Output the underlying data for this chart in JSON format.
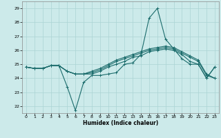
{
  "xlabel": "Humidex (Indice chaleur)",
  "xlim": [
    -0.5,
    23.5
  ],
  "ylim": [
    21.5,
    29.5
  ],
  "yticks": [
    22,
    23,
    24,
    25,
    26,
    27,
    28,
    29
  ],
  "xticks": [
    0,
    1,
    2,
    3,
    4,
    5,
    6,
    7,
    8,
    9,
    10,
    11,
    12,
    13,
    14,
    15,
    16,
    17,
    18,
    19,
    20,
    21,
    22,
    23
  ],
  "bg_color": "#cceaea",
  "grid_color": "#aad4d4",
  "line_color": "#1a6b6b",
  "lines": [
    [
      24.8,
      24.7,
      24.7,
      24.9,
      24.9,
      23.4,
      21.7,
      23.7,
      24.2,
      24.2,
      24.3,
      24.4,
      25.0,
      25.1,
      25.7,
      28.3,
      29.0,
      26.8,
      26.1,
      25.4,
      25.0,
      25.0,
      24.0,
      24.8
    ],
    [
      24.8,
      24.7,
      24.7,
      24.9,
      24.9,
      24.5,
      24.3,
      24.3,
      24.3,
      24.5,
      24.8,
      25.0,
      25.2,
      25.5,
      25.6,
      25.9,
      26.0,
      26.1,
      26.0,
      25.7,
      25.2,
      25.0,
      24.0,
      24.8
    ],
    [
      24.8,
      24.7,
      24.7,
      24.9,
      24.9,
      24.5,
      24.3,
      24.3,
      24.4,
      24.6,
      24.9,
      25.2,
      25.4,
      25.6,
      25.8,
      26.0,
      26.1,
      26.2,
      26.1,
      25.8,
      25.5,
      25.2,
      24.2,
      24.0
    ],
    [
      24.8,
      24.7,
      24.7,
      24.9,
      24.9,
      24.5,
      24.3,
      24.3,
      24.5,
      24.7,
      25.0,
      25.3,
      25.5,
      25.7,
      25.9,
      26.1,
      26.2,
      26.3,
      26.2,
      25.9,
      25.6,
      25.3,
      24.3,
      24.0
    ]
  ]
}
